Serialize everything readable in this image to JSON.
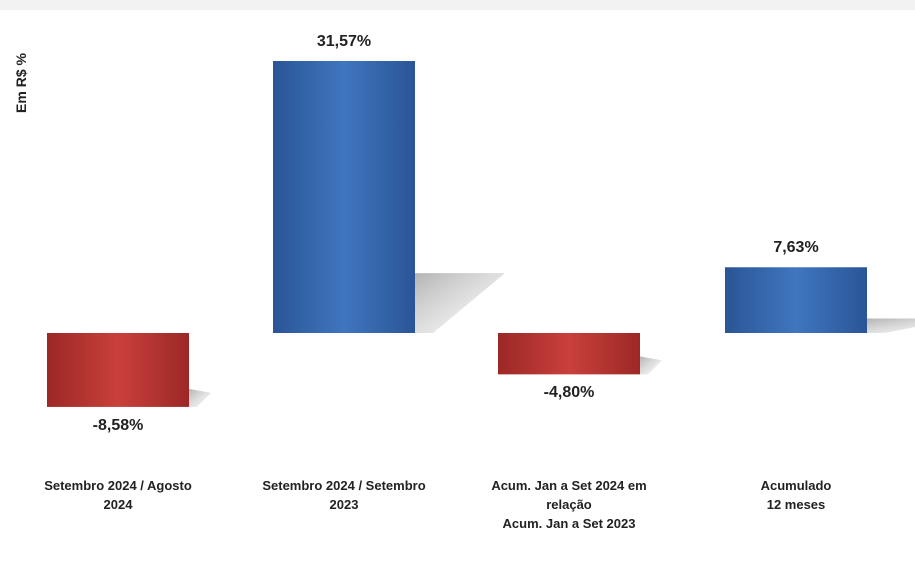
{
  "chart_data": {
    "type": "bar",
    "ylabel": "Em R$ %",
    "categories": [
      "Setembro 2024 / Agosto\n2024",
      "Setembro 2024 / Setembro\n2023",
      "Acum. Jan a Set 2024 em\nrelação\nAcum. Jan a Set 2023",
      "Acumulado\n12 meses"
    ],
    "values": [
      -8.58,
      31.57,
      -4.8,
      7.63
    ],
    "value_labels": [
      "-8,58%",
      "31,57%",
      "-4,80%",
      "7,63%"
    ],
    "colors": {
      "positive": "#2f5d9e",
      "negative": "#b0302f"
    },
    "grid": false,
    "legend": "none"
  }
}
